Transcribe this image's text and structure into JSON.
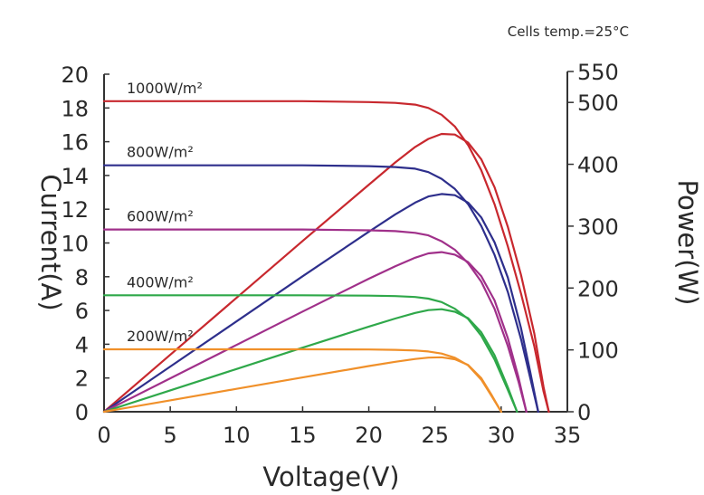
{
  "chart_data": {
    "type": "line",
    "title": "",
    "annotation": "Cells temp.=25°C",
    "xlabel": "Voltage(V)",
    "ylabel_left": "Current(A)",
    "ylabel_right": "Power(W)",
    "xlim": [
      0,
      35
    ],
    "ylim_left": [
      0,
      20
    ],
    "ylim_right": [
      0,
      550
    ],
    "x_ticks": [
      "0",
      "5",
      "10",
      "15",
      "20",
      "25",
      "30",
      "35"
    ],
    "y_left_ticks": [
      "0",
      "2",
      "4",
      "6",
      "8",
      "10",
      "12",
      "14",
      "16",
      "18",
      "20"
    ],
    "y_right_ticks": [
      "0",
      "100",
      "200",
      "300",
      "400",
      "500",
      "550"
    ],
    "grid": false,
    "legend": "inline labels at left",
    "series": [
      {
        "name": "1000W/m²",
        "color": "#c8282e",
        "current": {
          "x": [
            0,
            5,
            10,
            15,
            20,
            22,
            23.5,
            24.5,
            25.5,
            26.5,
            27.5,
            28.5,
            29.5,
            30.5,
            31.5,
            32.5,
            33.2,
            33.6
          ],
          "y": [
            18.4,
            18.4,
            18.4,
            18.4,
            18.35,
            18.3,
            18.2,
            18.0,
            17.6,
            16.9,
            15.8,
            14.3,
            12.3,
            9.8,
            7.0,
            3.9,
            1.2,
            0
          ]
        },
        "power": {
          "x": [
            0,
            5,
            10,
            15,
            20,
            22,
            23.5,
            24.5,
            25.5,
            26.5,
            27.5,
            28.5,
            29.5,
            30.5,
            31.5,
            32.5,
            33.2,
            33.6
          ],
          "y": [
            0,
            92,
            184,
            276,
            367,
            403,
            428,
            441,
            449,
            448,
            435,
            408,
            363,
            299,
            221,
            127,
            40,
            0
          ]
        }
      },
      {
        "name": "800W/m²",
        "color": "#2e2f8c",
        "current": {
          "x": [
            0,
            5,
            10,
            15,
            20,
            22,
            23.5,
            24.5,
            25.5,
            26.5,
            27.5,
            28.5,
            29.5,
            30.5,
            31.5,
            32.2,
            32.8
          ],
          "y": [
            14.6,
            14.6,
            14.6,
            14.6,
            14.55,
            14.5,
            14.4,
            14.2,
            13.8,
            13.2,
            12.3,
            11.0,
            9.3,
            7.1,
            4.3,
            2.0,
            0
          ]
        },
        "power": {
          "x": [
            0,
            5,
            10,
            15,
            20,
            22,
            23.5,
            24.5,
            25.5,
            26.5,
            27.5,
            28.5,
            29.5,
            30.5,
            31.5,
            32.2,
            32.8
          ],
          "y": [
            0,
            73,
            146,
            219,
            291,
            319,
            338,
            348,
            352,
            350,
            338,
            314,
            274,
            217,
            135,
            64,
            0
          ]
        }
      },
      {
        "name": "600W/m²",
        "color": "#a0308a",
        "current": {
          "x": [
            0,
            5,
            10,
            15,
            20,
            22,
            23.5,
            24.5,
            25.5,
            26.5,
            27.5,
            28.5,
            29.5,
            30.5,
            31.3,
            31.9
          ],
          "y": [
            10.8,
            10.8,
            10.8,
            10.8,
            10.75,
            10.7,
            10.6,
            10.45,
            10.1,
            9.6,
            8.8,
            7.7,
            6.1,
            3.9,
            1.8,
            0
          ]
        },
        "power": {
          "x": [
            0,
            5,
            10,
            15,
            20,
            22,
            23.5,
            24.5,
            25.5,
            26.5,
            27.5,
            28.5,
            29.5,
            30.5,
            31.3,
            31.9
          ],
          "y": [
            0,
            54,
            108,
            162,
            215,
            235,
            249,
            256,
            258,
            254,
            242,
            219,
            180,
            119,
            56,
            0
          ]
        }
      },
      {
        "name": "400W/m²",
        "color": "#2fa84a",
        "current": {
          "x": [
            0,
            5,
            10,
            15,
            20,
            22,
            23.5,
            24.5,
            25.5,
            26.5,
            27.5,
            28.5,
            29.5,
            30.5,
            31.2
          ],
          "y": [
            6.9,
            6.9,
            6.9,
            6.9,
            6.88,
            6.85,
            6.8,
            6.7,
            6.5,
            6.1,
            5.5,
            4.5,
            3.1,
            1.3,
            0
          ]
        },
        "power": {
          "x": [
            0,
            5,
            10,
            15,
            20,
            22,
            23.5,
            24.5,
            25.5,
            26.5,
            27.5,
            28.5,
            29.5,
            30.5,
            31.2
          ],
          "y": [
            0,
            34.5,
            69,
            103.5,
            137.6,
            150.7,
            159.8,
            164.2,
            165.8,
            161.7,
            151.3,
            128.3,
            91.5,
            39.7,
            0
          ]
        }
      },
      {
        "name": "200W/m²",
        "color": "#f0902a",
        "current": {
          "x": [
            0,
            5,
            10,
            15,
            20,
            22,
            23.5,
            24.5,
            25.5,
            26.5,
            27.5,
            28.5,
            29.3,
            30.0
          ],
          "y": [
            3.7,
            3.7,
            3.7,
            3.7,
            3.69,
            3.67,
            3.63,
            3.57,
            3.45,
            3.2,
            2.75,
            1.9,
            0.9,
            0
          ]
        },
        "power": {
          "x": [
            0,
            5,
            10,
            15,
            20,
            22,
            23.5,
            24.5,
            25.5,
            26.5,
            27.5,
            28.5,
            29.3,
            30.0
          ],
          "y": [
            0,
            18.5,
            37,
            55.5,
            73.8,
            80.7,
            85.3,
            87.5,
            88,
            84.8,
            75.6,
            54.2,
            26.4,
            0
          ]
        }
      }
    ]
  }
}
